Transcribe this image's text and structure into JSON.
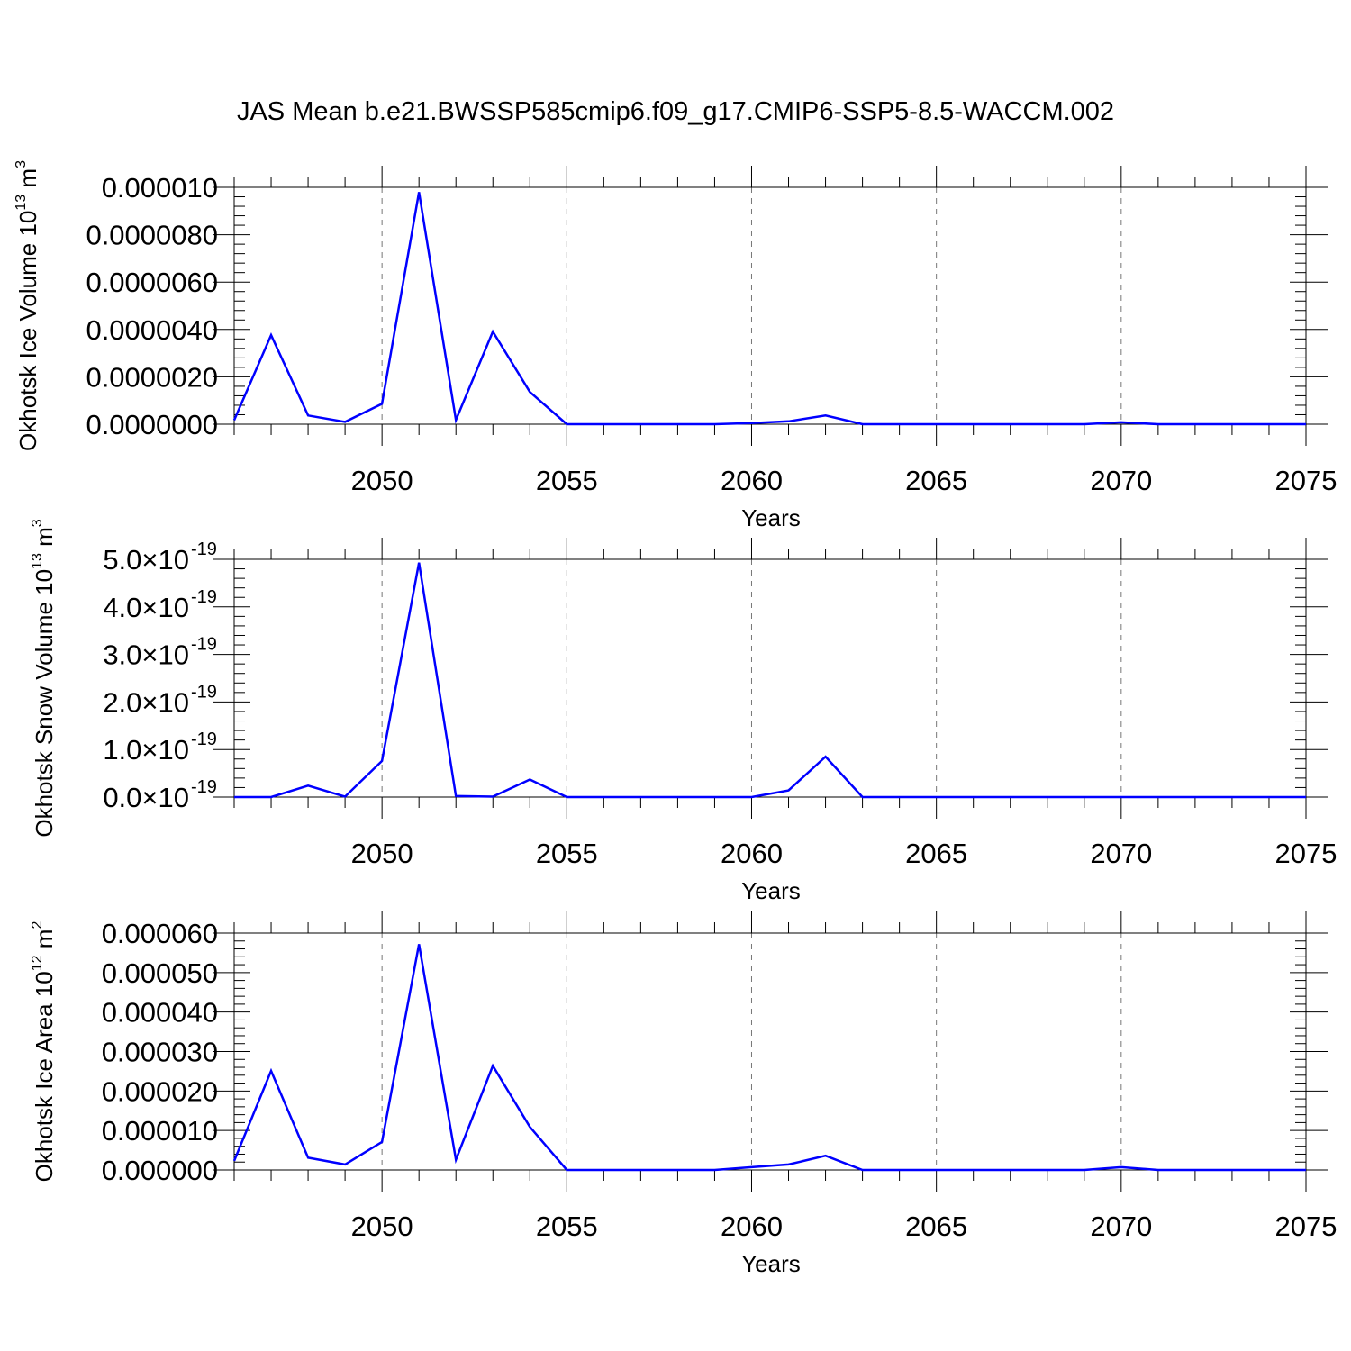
{
  "title": "JAS Mean b.e21.BWSSP585cmip6.f09_g17.CMIP6-SSP5-8.5-WACCM.002",
  "chart_data": [
    {
      "type": "line",
      "ylabel": "Okhotsk Ice Volume 10",
      "ylabel_sup": "13",
      "ylabel_unit": " m",
      "ylabel_unit_sup": "3",
      "xlabel": "Years",
      "xlim": [
        2046,
        2075
      ],
      "ylim": [
        0,
        1e-05
      ],
      "x_ticks": [
        "2050",
        "2055",
        "2060",
        "2065",
        "2070",
        "2075"
      ],
      "y_ticks": [
        {
          "value": 0.0,
          "label": "0.0000000"
        },
        {
          "value": 2e-06,
          "label": "0.0000020"
        },
        {
          "value": 4e-06,
          "label": "0.0000040"
        },
        {
          "value": 6e-06,
          "label": "0.0000060"
        },
        {
          "value": 8e-06,
          "label": "0.0000080"
        },
        {
          "value": 1e-05,
          "label": "0.000010"
        }
      ],
      "color": "#0000ff",
      "x": [
        2046,
        2047,
        2048,
        2049,
        2050,
        2051,
        2052,
        2053,
        2054,
        2055,
        2056,
        2057,
        2058,
        2059,
        2060,
        2061,
        2062,
        2063,
        2064,
        2065,
        2066,
        2067,
        2068,
        2069,
        2070,
        2071,
        2072,
        2073,
        2074,
        2075
      ],
      "values": [
        1.7e-07,
        3.76e-06,
        3.7e-07,
        1e-07,
        8.6e-07,
        9.8e-06,
        1.8e-07,
        3.91e-06,
        1.36e-06,
        0.0,
        0.0,
        0.0,
        0.0,
        0.0,
        5e-08,
        1.2e-07,
        3.7e-07,
        0.0,
        0.0,
        0.0,
        0.0,
        0.0,
        0.0,
        0.0,
        8e-08,
        0.0,
        0.0,
        0.0,
        0.0,
        0.0
      ]
    },
    {
      "type": "line",
      "ylabel": "Okhotsk Snow Volume 10",
      "ylabel_sup": "13",
      "ylabel_unit": " m",
      "ylabel_unit_sup": "3",
      "xlabel": "Years",
      "xlim": [
        2046,
        2075
      ],
      "ylim": [
        0,
        5e-19
      ],
      "x_ticks": [
        "2050",
        "2055",
        "2060",
        "2065",
        "2070",
        "2075"
      ],
      "y_ticks": [
        {
          "value": 0.0,
          "mant": "0.0",
          "exp": "-19"
        },
        {
          "value": 1e-19,
          "mant": "1.0",
          "exp": "-19"
        },
        {
          "value": 2e-19,
          "mant": "2.0",
          "exp": "-19"
        },
        {
          "value": 3e-19,
          "mant": "3.0",
          "exp": "-19"
        },
        {
          "value": 4e-19,
          "mant": "4.0",
          "exp": "-19"
        },
        {
          "value": 5e-19,
          "mant": "5.0",
          "exp": "-19"
        }
      ],
      "y_tick_times": "×10",
      "color": "#0000ff",
      "x": [
        2046,
        2047,
        2048,
        2049,
        2050,
        2051,
        2052,
        2053,
        2054,
        2055,
        2056,
        2057,
        2058,
        2059,
        2060,
        2061,
        2062,
        2063,
        2064,
        2065,
        2066,
        2067,
        2068,
        2069,
        2070,
        2071,
        2072,
        2073,
        2074,
        2075
      ],
      "values": [
        0.0,
        0.0,
        2.4e-20,
        1e-21,
        7.6e-20,
        4.93e-19,
        2e-21,
        1e-21,
        3.7e-20,
        0.0,
        0.0,
        0.0,
        0.0,
        0.0,
        0.0,
        1.4e-20,
        8.5e-20,
        0.0,
        0.0,
        0.0,
        0.0,
        0.0,
        0.0,
        0.0,
        0.0,
        0.0,
        0.0,
        0.0,
        0.0,
        0.0
      ]
    },
    {
      "type": "line",
      "ylabel": "Okhotsk Ice Area 10",
      "ylabel_sup": "12",
      "ylabel_unit": " m",
      "ylabel_unit_sup": "2",
      "xlabel": "Years",
      "xlim": [
        2046,
        2075
      ],
      "ylim": [
        0,
        6e-05
      ],
      "x_ticks": [
        "2050",
        "2055",
        "2060",
        "2065",
        "2070",
        "2075"
      ],
      "y_ticks": [
        {
          "value": 0.0,
          "label": "0.000000"
        },
        {
          "value": 1e-05,
          "label": "0.000010"
        },
        {
          "value": 2e-05,
          "label": "0.000020"
        },
        {
          "value": 3e-05,
          "label": "0.000030"
        },
        {
          "value": 4e-05,
          "label": "0.000040"
        },
        {
          "value": 5e-05,
          "label": "0.000050"
        },
        {
          "value": 6e-05,
          "label": "0.000060"
        }
      ],
      "color": "#0000ff",
      "x": [
        2046,
        2047,
        2048,
        2049,
        2050,
        2051,
        2052,
        2053,
        2054,
        2055,
        2056,
        2057,
        2058,
        2059,
        2060,
        2061,
        2062,
        2063,
        2064,
        2065,
        2066,
        2067,
        2068,
        2069,
        2070,
        2071,
        2072,
        2073,
        2074,
        2075
      ],
      "values": [
        2.3e-06,
        2.51e-05,
        3.1e-06,
        1.4e-06,
        7.1e-06,
        5.72e-05,
        2.6e-06,
        2.64e-05,
        1.09e-05,
        0.0,
        0.0,
        0.0,
        0.0,
        0.0,
        7e-07,
        1.4e-06,
        3.6e-06,
        0.0,
        0.0,
        0.0,
        0.0,
        0.0,
        0.0,
        0.0,
        7e-07,
        0.0,
        0.0,
        0.0,
        0.0,
        0.0
      ]
    }
  ]
}
